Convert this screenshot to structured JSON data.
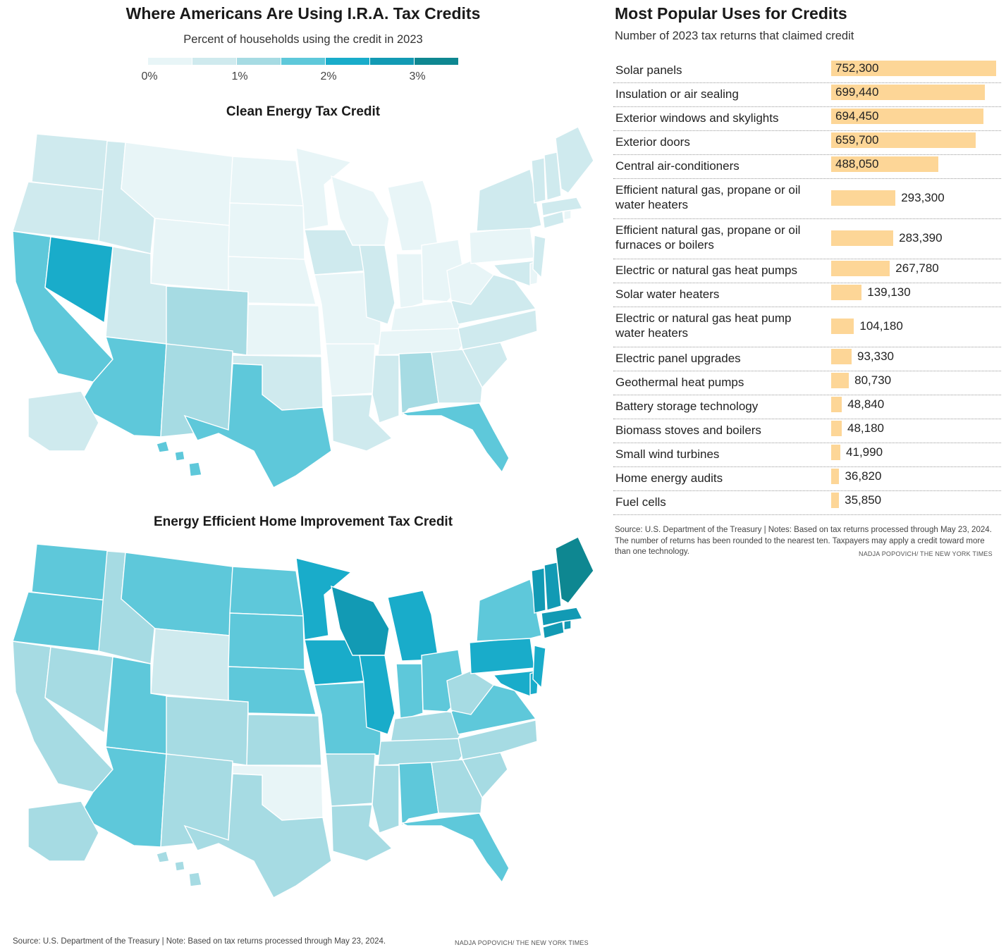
{
  "header": {
    "title": "Where Americans Are Using I.R.A. Tax Credits",
    "subtitle": "Percent of households using the credit in 2023"
  },
  "legend": {
    "ticks": [
      "0%",
      "1%",
      "2%",
      "3%"
    ],
    "colors": [
      "#e8f5f7",
      "#cfeaee",
      "#a6dbe3",
      "#5ec8da",
      "#19acca",
      "#129ab4",
      "#0e8791"
    ]
  },
  "maps": {
    "clean_title": "Clean Energy Tax Credit",
    "home_title": "Energy Efficient Home Improvement Tax Credit"
  },
  "footer": {
    "source": "Source: U.S. Department of the Treasury | Note: Based on tax returns processed through May 23, 2024.",
    "credit": "NADJA POPOVICH/ THE NEW YORK TIMES"
  },
  "right": {
    "title": "Most Popular Uses for Credits",
    "subtitle": "Number of 2023 tax returns that claimed credit",
    "source": "Source: U.S. Department of the Treasury | Notes: Based on tax returns processed through May 23, 2024. The number of returns has been rounded to the nearest ten. Taxpayers may apply a credit toward more than one technology.",
    "credit": "NADJA POPOVICH/ THE NEW YORK TIMES"
  },
  "chart_data": [
    {
      "type": "bar",
      "orientation": "horizontal",
      "title": "Most Popular Uses for Credits",
      "subtitle": "Number of 2023 tax returns that claimed credit",
      "bar_color": "#fdd697",
      "xlim": [
        0,
        752300
      ],
      "categories": [
        "Solar panels",
        "Insulation or air sealing",
        "Exterior windows and skylights",
        "Exterior doors",
        "Central air-conditioners",
        "Efficient natural gas, propane or oil water heaters",
        "Efficient natural gas, propane or oil furnaces or boilers",
        "Electric or natural gas heat pumps",
        "Solar water heaters",
        "Electric or natural gas heat pump water heaters",
        "Electric panel upgrades",
        "Geothermal heat pumps",
        "Battery storage technology",
        "Biomass stoves and boilers",
        "Small wind turbines",
        "Home energy audits",
        "Fuel cells"
      ],
      "labels": [
        "752,300",
        "699,440",
        "694,450",
        "659,700",
        "488,050",
        "293,300",
        "283,390",
        "267,780",
        "139,130",
        "104,180",
        "93,330",
        "80,730",
        "48,840",
        "48,180",
        "41,990",
        "36,820",
        "35,850"
      ],
      "values": [
        752300,
        699440,
        694450,
        659700,
        488050,
        293300,
        283390,
        267780,
        139130,
        104180,
        93330,
        80730,
        48840,
        48180,
        41990,
        36820,
        35850
      ]
    },
    {
      "type": "heatmap",
      "title": "Clean Energy Tax Credit",
      "subtitle": "Percent of households using the credit in 2023",
      "scale_ticks": [
        "0%",
        "1%",
        "2%",
        "3%"
      ],
      "regions": [
        {
          "state": "NV",
          "level": 4
        },
        {
          "state": "CA",
          "level": 3
        },
        {
          "state": "AZ",
          "level": 3
        },
        {
          "state": "TX",
          "level": 3
        },
        {
          "state": "FL",
          "level": 3
        },
        {
          "state": "HI",
          "level": 3
        },
        {
          "state": "CO",
          "level": 2
        },
        {
          "state": "NM",
          "level": 2
        },
        {
          "state": "AL",
          "level": 2
        },
        {
          "state": "OR",
          "level": 1
        },
        {
          "state": "WA",
          "level": 1
        },
        {
          "state": "ID",
          "level": 1
        },
        {
          "state": "UT",
          "level": 1
        },
        {
          "state": "OK",
          "level": 1
        },
        {
          "state": "IA",
          "level": 1
        },
        {
          "state": "IL",
          "level": 1
        },
        {
          "state": "NY",
          "level": 1
        },
        {
          "state": "NJ",
          "level": 1
        },
        {
          "state": "MA",
          "level": 1
        },
        {
          "state": "CT",
          "level": 1
        },
        {
          "state": "VT",
          "level": 1
        },
        {
          "state": "NH",
          "level": 1
        },
        {
          "state": "ME",
          "level": 1
        },
        {
          "state": "MD",
          "level": 1
        },
        {
          "state": "VA",
          "level": 1
        },
        {
          "state": "NC",
          "level": 1
        },
        {
          "state": "SC",
          "level": 1
        },
        {
          "state": "GA",
          "level": 1
        },
        {
          "state": "MS",
          "level": 1
        },
        {
          "state": "LA",
          "level": 1
        },
        {
          "state": "AK",
          "level": 1
        }
      ],
      "default_level": 0
    },
    {
      "type": "heatmap",
      "title": "Energy Efficient Home Improvement Tax Credit",
      "subtitle": "Percent of households using the credit in 2023",
      "scale_ticks": [
        "0%",
        "1%",
        "2%",
        "3%"
      ],
      "regions": [
        {
          "state": "ME",
          "level": 6
        },
        {
          "state": "NH",
          "level": 5
        },
        {
          "state": "VT",
          "level": 5
        },
        {
          "state": "MA",
          "level": 5
        },
        {
          "state": "CT",
          "level": 5
        },
        {
          "state": "RI",
          "level": 5
        },
        {
          "state": "WI",
          "level": 5
        },
        {
          "state": "MN",
          "level": 4
        },
        {
          "state": "IA",
          "level": 4
        },
        {
          "state": "IL",
          "level": 4
        },
        {
          "state": "MI",
          "level": 4
        },
        {
          "state": "PA",
          "level": 4
        },
        {
          "state": "NJ",
          "level": 4
        },
        {
          "state": "MD",
          "level": 4
        },
        {
          "state": "DE",
          "level": 4
        },
        {
          "state": "WA",
          "level": 3
        },
        {
          "state": "OR",
          "level": 3
        },
        {
          "state": "MT",
          "level": 3
        },
        {
          "state": "ND",
          "level": 3
        },
        {
          "state": "SD",
          "level": 3
        },
        {
          "state": "NE",
          "level": 3
        },
        {
          "state": "UT",
          "level": 3
        },
        {
          "state": "AZ",
          "level": 3
        },
        {
          "state": "MO",
          "level": 3
        },
        {
          "state": "IN",
          "level": 3
        },
        {
          "state": "OH",
          "level": 3
        },
        {
          "state": "VA",
          "level": 3
        },
        {
          "state": "NY",
          "level": 3
        },
        {
          "state": "AL",
          "level": 3
        },
        {
          "state": "FL",
          "level": 3
        },
        {
          "state": "WY",
          "level": 1
        },
        {
          "state": "OK",
          "level": 0
        }
      ],
      "default_level": 2
    }
  ]
}
